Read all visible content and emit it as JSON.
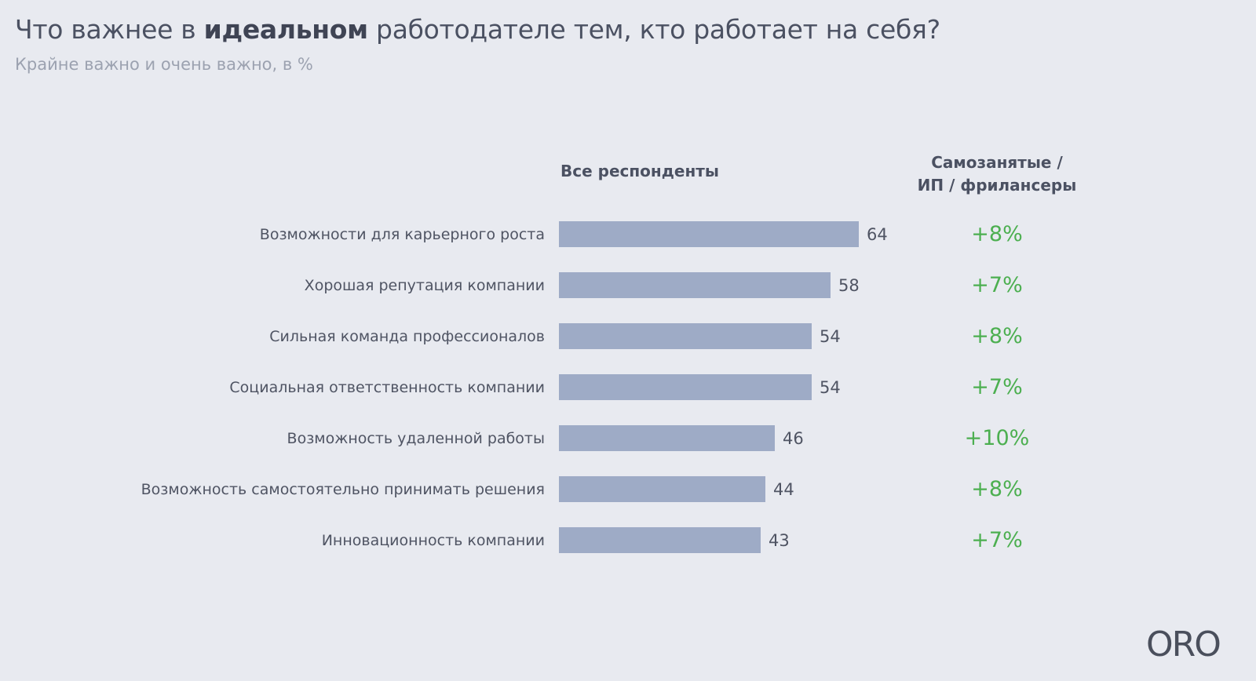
{
  "header": {
    "title_before": "Что важнее в ",
    "title_bold": "идеальном",
    "title_after": " работодателе тем, кто работает на себя?",
    "subtitle": "Крайне важно и очень важно, в %"
  },
  "columns": {
    "all_label": "Все респонденты",
    "self_label_line1": "Самозанятые /",
    "self_label_line2": "ИП / фрилансеры"
  },
  "chart_data": {
    "type": "bar",
    "orientation": "horizontal",
    "title": "Что важнее в идеальном работодателе тем, кто работает на себя?",
    "subtitle": "Крайне важно и очень важно, в %",
    "xlabel": "",
    "ylabel": "",
    "xlim": [
      0,
      64
    ],
    "grid": false,
    "categories": [
      "Возможности для карьерного роста",
      "Хорошая репутация компании",
      "Сильная команда профессионалов",
      "Социальная ответственность компании",
      "Возможность удаленной работы",
      "Возможность самостоятельно принимать решения",
      "Инновационность компании"
    ],
    "series": [
      {
        "name": "Все респонденты",
        "values": [
          64,
          58,
          54,
          54,
          46,
          44,
          43
        ],
        "color": "#9eabc6"
      }
    ],
    "annotations": {
      "name": "Самозанятые / ИП / фрилансеры",
      "values": [
        "+8%",
        "+7%",
        "+8%",
        "+7%",
        "+10%",
        "+8%",
        "+7%"
      ],
      "color": "#4caf50"
    }
  },
  "brand": {
    "logo_text": "ORO"
  }
}
